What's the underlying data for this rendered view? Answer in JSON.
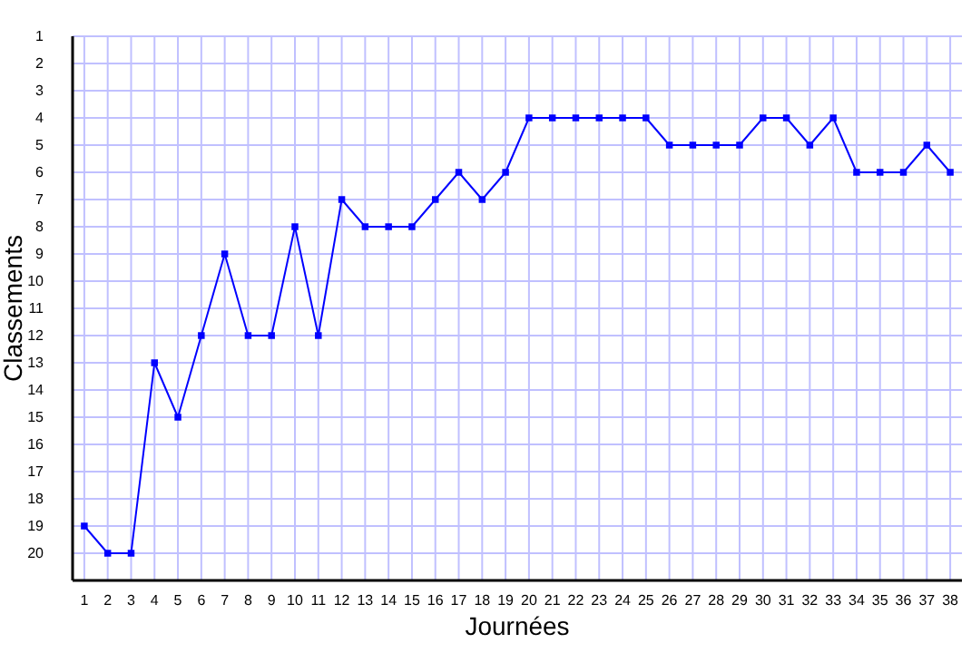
{
  "chart_data": {
    "type": "line",
    "xlabel": "Journées",
    "ylabel": "Classements",
    "x": [
      1,
      2,
      3,
      4,
      5,
      6,
      7,
      8,
      9,
      10,
      11,
      12,
      13,
      14,
      15,
      16,
      17,
      18,
      19,
      20,
      21,
      22,
      23,
      24,
      25,
      26,
      27,
      28,
      29,
      30,
      31,
      32,
      33,
      34,
      35,
      36,
      37,
      38
    ],
    "series": [
      {
        "color": "#0000ff",
        "values": [
          19,
          20,
          20,
          13,
          15,
          12,
          9,
          12,
          12,
          8,
          12,
          7,
          8,
          8,
          8,
          7,
          6,
          7,
          6,
          4,
          4,
          4,
          4,
          4,
          4,
          5,
          5,
          5,
          5,
          4,
          4,
          5,
          4,
          6,
          6,
          6,
          5,
          6
        ]
      }
    ],
    "xlim": [
      0.5,
      38.5
    ],
    "xticks": [
      1,
      2,
      3,
      4,
      5,
      6,
      7,
      8,
      9,
      10,
      11,
      12,
      13,
      14,
      15,
      16,
      17,
      18,
      19,
      20,
      21,
      22,
      23,
      24,
      25,
      26,
      27,
      28,
      29,
      30,
      31,
      32,
      33,
      34,
      35,
      36,
      37,
      38
    ],
    "ylim": [
      21,
      1
    ],
    "yticks": [
      1,
      2,
      3,
      4,
      5,
      6,
      7,
      8,
      9,
      10,
      11,
      12,
      13,
      14,
      15,
      16,
      17,
      18,
      19,
      20
    ],
    "grid": true,
    "marker": "square",
    "line_style": "solid"
  }
}
